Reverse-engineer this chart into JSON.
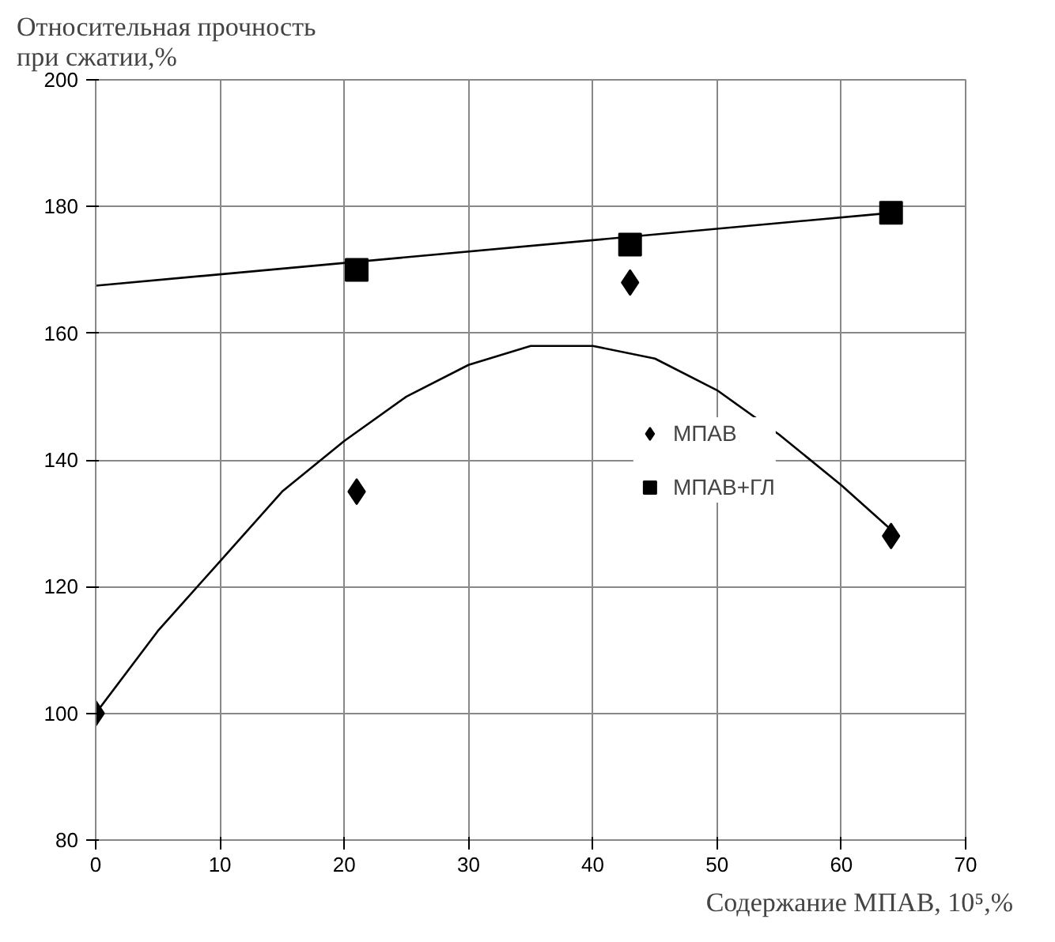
{
  "chart_data": {
    "type": "scatter",
    "ylabel": "Относительная прочность при сжатии,%",
    "xlabel": "Содержание МПАВ, 10⁵,%",
    "xlim": [
      0,
      70
    ],
    "xticks": [
      0,
      10,
      20,
      30,
      40,
      50,
      60,
      70
    ],
    "ylim": [
      80,
      200
    ],
    "yticks": [
      80,
      100,
      120,
      140,
      160,
      180,
      200
    ],
    "grid": true,
    "legend": "right",
    "series": [
      {
        "name": "МПАВ",
        "color": "#000000",
        "marker": "diamond",
        "x": [
          0,
          21,
          43,
          64
        ],
        "values": [
          100,
          135,
          168,
          128
        ]
      },
      {
        "name": "МПАВ+ГЛ",
        "color": "#000000",
        "marker": "square",
        "x": [
          21,
          43,
          64
        ],
        "values": [
          170,
          174,
          179
        ]
      },
      {
        "type": "line",
        "color": "#000000",
        "marker": "none",
        "x": [
          0,
          5,
          10,
          15,
          20,
          25,
          30,
          35,
          40,
          45,
          50,
          55,
          60,
          64
        ],
        "values": [
          100,
          113,
          124,
          135,
          143,
          150,
          155,
          158,
          158,
          156,
          151,
          144,
          136,
          129
        ]
      },
      {
        "type": "line",
        "color": "#000000",
        "marker": "none",
        "x": [
          0,
          64
        ],
        "values": [
          167.5,
          179
        ]
      }
    ]
  }
}
